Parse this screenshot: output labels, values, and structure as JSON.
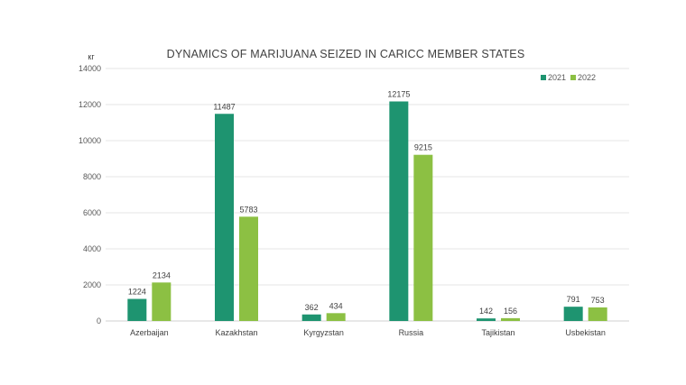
{
  "chart_data": {
    "type": "bar",
    "title": "DYNAMICS OF MARIJUANA SEIZED IN CARICC MEMBER STATES",
    "ylabel": "кг",
    "xlabel": "",
    "ylim": [
      0,
      14000
    ],
    "yticks": [
      0,
      2000,
      4000,
      6000,
      8000,
      10000,
      12000,
      14000
    ],
    "grid": true,
    "legend_position": "top-right",
    "categories": [
      "Azerbaijan",
      "Kazakhstan",
      "Kyrgyzstan",
      "Russia",
      "Tajikistan",
      "Usbekistan"
    ],
    "series": [
      {
        "name": "2021",
        "color": "#1e9470",
        "values": [
          1224,
          11487,
          362,
          12175,
          142,
          791
        ]
      },
      {
        "name": "2022",
        "color": "#8cc043",
        "values": [
          2134,
          5783,
          434,
          9215,
          156,
          753
        ]
      }
    ]
  }
}
